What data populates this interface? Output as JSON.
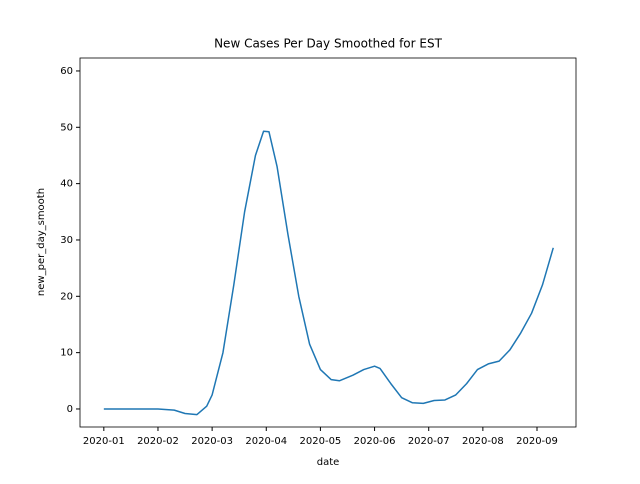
{
  "chart_data": {
    "type": "line",
    "title": "New Cases Per Day Smoothed for EST",
    "x_label": "date",
    "y_label": "new_per_day_smooth",
    "x": [
      0,
      0.5,
      1,
      1.3,
      1.5,
      1.72,
      1.9,
      2.0,
      2.2,
      2.4,
      2.6,
      2.8,
      2.95,
      3.05,
      3.2,
      3.4,
      3.6,
      3.8,
      4.0,
      4.2,
      4.35,
      4.6,
      4.8,
      5.0,
      5.1,
      5.3,
      5.5,
      5.7,
      5.9,
      6.1,
      6.3,
      6.5,
      6.7,
      6.9,
      7.1,
      7.3,
      7.5,
      7.7,
      7.9,
      8.1,
      8.3
    ],
    "series": [
      {
        "name": "new_per_day_smooth",
        "color": "#1f77b4",
        "values": [
          0,
          0,
          0,
          -0.2,
          -0.8,
          -1,
          0.5,
          2.5,
          10,
          22,
          35,
          45,
          49.3,
          49.2,
          43,
          31,
          20,
          11.5,
          7,
          5.2,
          5,
          6,
          7,
          7.6,
          7.2,
          4.5,
          2,
          1.1,
          1,
          1.5,
          1.6,
          2.5,
          4.5,
          7,
          8,
          8.5,
          10.5,
          13.5,
          17,
          22,
          28.6
        ]
      }
    ],
    "xlim": [
      -0.44,
      8.72
    ],
    "xticks": [
      {
        "value": 0,
        "label": "2020-01"
      },
      {
        "value": 1,
        "label": "2020-02"
      },
      {
        "value": 2,
        "label": "2020-03"
      },
      {
        "value": 3,
        "label": "2020-04"
      },
      {
        "value": 4,
        "label": "2020-05"
      },
      {
        "value": 5,
        "label": "2020-06"
      },
      {
        "value": 6,
        "label": "2020-07"
      },
      {
        "value": 7,
        "label": "2020-08"
      },
      {
        "value": 8,
        "label": "2020-09"
      }
    ],
    "ylim": [
      -3.2,
      62.3
    ],
    "yticks": [
      0,
      10,
      20,
      30,
      40,
      50,
      60
    ],
    "grid": false
  }
}
